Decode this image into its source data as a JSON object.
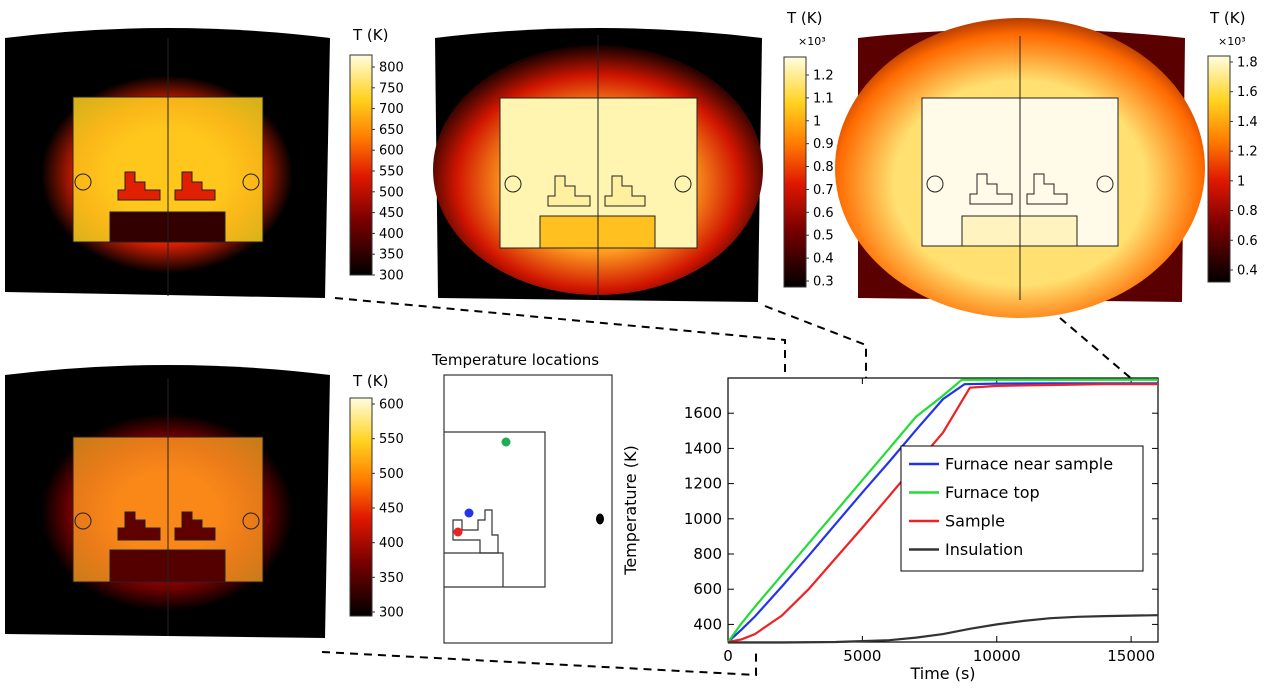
{
  "colorbars": [
    {
      "label": "T (K)",
      "exponent": "",
      "ticks": [
        "800",
        "750",
        "700",
        "650",
        "600",
        "550",
        "500",
        "450",
        "400",
        "350",
        "300"
      ]
    },
    {
      "label": "T (K)",
      "exponent": "×10³",
      "ticks": [
        "1.2",
        "1.1",
        "1",
        "0.9",
        "0.8",
        "0.7",
        "0.6",
        "0.5",
        "0.4",
        "0.3"
      ]
    },
    {
      "label": "T (K)",
      "exponent": "×10³",
      "ticks": [
        "1.8",
        "1.6",
        "1.4",
        "1.2",
        "1",
        "0.8",
        "0.6",
        "0.4"
      ]
    },
    {
      "label": "T (K)",
      "exponent": "",
      "ticks": [
        "600",
        "550",
        "500",
        "450",
        "400",
        "350",
        "300"
      ]
    }
  ],
  "locations_panel": {
    "title": "Temperature locations"
  },
  "colors": {
    "furnace_near_sample": "#2233ee",
    "furnace_top": "#22dd33",
    "sample": "#ee2222",
    "insulation": "#333333"
  },
  "chart_data": {
    "type": "line",
    "xlabel": "Time (s)",
    "ylabel": "Temperature (K)",
    "xlim": [
      0,
      16000
    ],
    "ylim": [
      300,
      1800
    ],
    "xticks": [
      0,
      5000,
      10000,
      15000
    ],
    "yticks": [
      400,
      600,
      800,
      1000,
      1200,
      1400,
      1600
    ],
    "legend_position": "center-right",
    "series": [
      {
        "name": "Furnace near sample",
        "color": "#2233ee",
        "x": [
          0,
          500,
          1000,
          2000,
          3000,
          4000,
          5000,
          6000,
          7000,
          8000,
          8800,
          10000,
          12000,
          14000,
          16000
        ],
        "y": [
          300,
          370,
          445,
          615,
          790,
          970,
          1150,
          1325,
          1505,
          1680,
          1765,
          1768,
          1770,
          1770,
          1770
        ]
      },
      {
        "name": "Furnace top",
        "color": "#22dd33",
        "x": [
          0,
          500,
          1000,
          2000,
          3000,
          4000,
          5000,
          6000,
          7000,
          8000,
          8700,
          10000,
          12000,
          14000,
          16000
        ],
        "y": [
          300,
          405,
          500,
          680,
          860,
          1040,
          1220,
          1400,
          1580,
          1700,
          1790,
          1790,
          1790,
          1790,
          1790
        ]
      },
      {
        "name": "Sample",
        "color": "#ee2222",
        "x": [
          0,
          500,
          1000,
          2000,
          3000,
          4000,
          5000,
          6000,
          7000,
          8000,
          9000,
          10000,
          12000,
          14000,
          16000
        ],
        "y": [
          300,
          315,
          345,
          450,
          600,
          775,
          950,
          1130,
          1310,
          1490,
          1745,
          1755,
          1760,
          1765,
          1765
        ]
      },
      {
        "name": "Insulation",
        "color": "#333333",
        "x": [
          0,
          2000,
          4000,
          6000,
          7000,
          8000,
          9000,
          10000,
          11000,
          12000,
          13000,
          14000,
          15000,
          16000
        ],
        "y": [
          297,
          297,
          300,
          310,
          325,
          345,
          375,
          400,
          420,
          435,
          443,
          447,
          450,
          452
        ]
      }
    ]
  }
}
